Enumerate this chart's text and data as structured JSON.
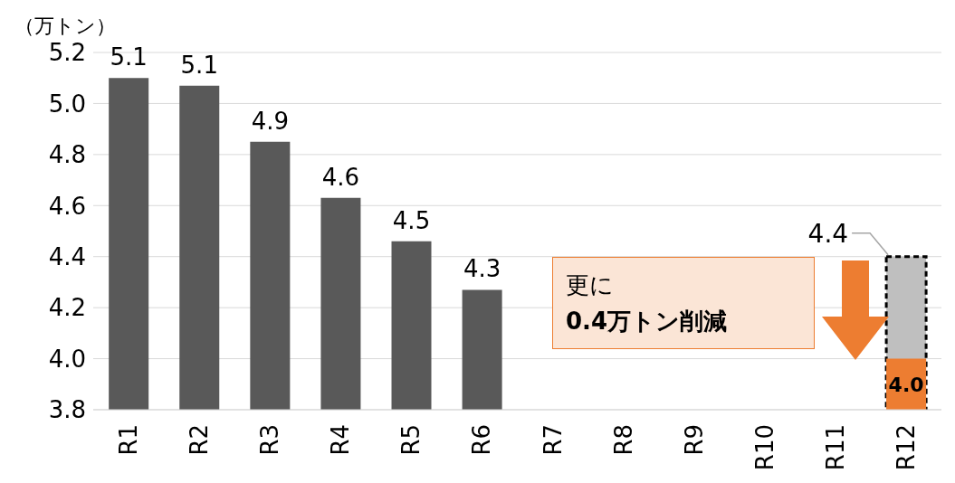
{
  "chart_data": {
    "type": "bar",
    "ylabel": "（万トン）",
    "categories": [
      "R1",
      "R2",
      "R3",
      "R4",
      "R5",
      "R6",
      "R7",
      "R8",
      "R9",
      "R10",
      "R11",
      "R12"
    ],
    "grid": "y",
    "ylim": [
      3.8,
      5.2
    ],
    "yticks": [
      3.8,
      {
        "value": 4,
        "label": "4.0"
      },
      4.2,
      4.4,
      4.6,
      4.8,
      {
        "value": 5,
        "label": "5.0"
      },
      5.2
    ],
    "series": [
      {
        "color": "#595959",
        "values": [
          5.1,
          5.07,
          4.85,
          4.63,
          4.46,
          4.27,
          null,
          null,
          null,
          null,
          null,
          null
        ],
        "value_labels": [
          "5.1",
          "5.1",
          "4.9",
          "4.6",
          "4.5",
          "4.3",
          null,
          null,
          null,
          null,
          null,
          null
        ]
      },
      {
        "color": "#bfbfbf",
        "values": [
          null,
          null,
          null,
          null,
          null,
          null,
          null,
          null,
          null,
          null,
          null,
          4.4
        ],
        "value_labels": [
          null,
          null,
          null,
          null,
          null,
          null,
          null,
          null,
          null,
          null,
          null,
          "4.4"
        ]
      },
      {
        "color": "#ed7d31",
        "values": [
          null,
          null,
          null,
          null,
          null,
          null,
          null,
          null,
          null,
          null,
          null,
          4.0
        ],
        "value_labels": [
          null,
          null,
          null,
          null,
          null,
          null,
          null,
          null,
          null,
          null,
          null,
          "4.0"
        ]
      }
    ],
    "annotations": [
      "更に\n0.4万トン削減"
    ]
  }
}
